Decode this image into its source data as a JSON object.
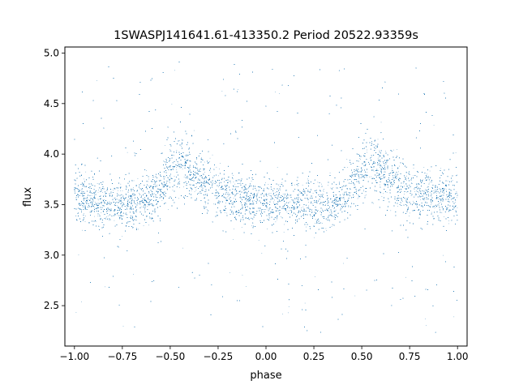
{
  "chart_data": {
    "type": "scatter",
    "title": "1SWASPJ141641.61-413350.2 Period 20522.93359s",
    "xlabel": "phase",
    "ylabel": "flux",
    "xlim": [
      -1.05,
      1.05
    ],
    "ylim": [
      2.1,
      5.06
    ],
    "x_ticks": [
      -1.0,
      -0.75,
      -0.5,
      -0.25,
      0.0,
      0.25,
      0.5,
      0.75,
      1.0
    ],
    "x_tick_labels": [
      "−1.00",
      "−0.75",
      "−0.50",
      "−0.25",
      "0.00",
      "0.25",
      "0.50",
      "0.75",
      "1.00"
    ],
    "y_ticks": [
      2.5,
      3.0,
      3.5,
      4.0,
      4.5,
      5.0
    ],
    "y_tick_labels": [
      "2.5",
      "3.0",
      "3.5",
      "4.0",
      "4.5",
      "5.0"
    ],
    "grid": false,
    "marker_color": "#1f77b4",
    "series": [
      {
        "x": [
          -1.0,
          -0.95,
          -0.9,
          -0.85,
          -0.8,
          -0.75,
          -0.7,
          -0.65,
          -0.6,
          -0.55,
          -0.5,
          -0.45,
          -0.4,
          -0.35,
          -0.3,
          -0.25,
          -0.2,
          -0.15,
          -0.1,
          -0.05,
          0.0,
          0.05,
          0.1,
          0.15,
          0.2,
          0.25,
          0.3,
          0.35,
          0.4,
          0.45,
          0.5,
          0.55,
          0.6,
          0.65,
          0.7,
          0.75,
          0.8,
          0.85,
          0.9,
          0.95,
          1.0
        ],
        "y": [
          3.56,
          3.55,
          3.54,
          3.52,
          3.51,
          3.5,
          3.5,
          3.52,
          3.56,
          3.66,
          3.82,
          3.9,
          3.84,
          3.76,
          3.69,
          3.64,
          3.6,
          3.57,
          3.55,
          3.54,
          3.53,
          3.52,
          3.51,
          3.5,
          3.5,
          3.5,
          3.51,
          3.52,
          3.56,
          3.66,
          3.82,
          3.9,
          3.84,
          3.76,
          3.69,
          3.64,
          3.6,
          3.58,
          3.57,
          3.56,
          3.56
        ],
        "spread": [
          0.24,
          0.24,
          0.24,
          0.24,
          0.24,
          0.24,
          0.24,
          0.24,
          0.25,
          0.27,
          0.3,
          0.31,
          0.3,
          0.28,
          0.27,
          0.26,
          0.25,
          0.25,
          0.24,
          0.24,
          0.24,
          0.24,
          0.24,
          0.24,
          0.24,
          0.24,
          0.24,
          0.24,
          0.25,
          0.27,
          0.3,
          0.31,
          0.3,
          0.28,
          0.27,
          0.26,
          0.25,
          0.25,
          0.24,
          0.24,
          0.24
        ]
      }
    ]
  }
}
